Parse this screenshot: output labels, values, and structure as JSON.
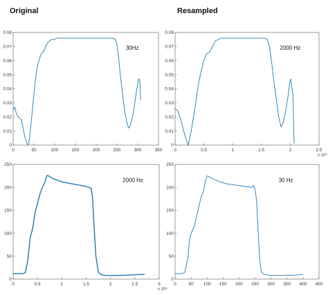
{
  "headings": {
    "left": "Original",
    "right": "Resampled"
  },
  "style": {
    "line_color": "#1f77b4",
    "axis_color": "#555555"
  },
  "chart_data": [
    {
      "type": "line",
      "id": "top-left",
      "annotation": "30Hz",
      "xlim": [
        0,
        350
      ],
      "ylim": [
        0,
        0.08
      ],
      "xticks": [
        "0",
        "50",
        "100",
        "150",
        "200",
        "250",
        "300",
        "350"
      ],
      "xtick_values": [
        0,
        50,
        100,
        150,
        200,
        250,
        300,
        350
      ],
      "yticks": [
        "0",
        "0.01",
        "0.02",
        "0.03",
        "0.04",
        "0.05",
        "0.06",
        "0.07",
        "0.08"
      ],
      "ytick_values": [
        0,
        0.01,
        0.02,
        0.03,
        0.04,
        0.05,
        0.06,
        0.07,
        0.08
      ],
      "x_exponent": "",
      "x": [
        0,
        4,
        8,
        12,
        16,
        20,
        24,
        28,
        32,
        36,
        38,
        40,
        44,
        48,
        52,
        56,
        60,
        64,
        68,
        72,
        76,
        80,
        84,
        88,
        92,
        96,
        100,
        104,
        110,
        120,
        140,
        160,
        180,
        200,
        220,
        230,
        240,
        246,
        250,
        254,
        258,
        262,
        266,
        270,
        274,
        278,
        282,
        286,
        290,
        294,
        298,
        302,
        305,
        307
      ],
      "y": [
        0.025,
        0.027,
        0.022,
        0.02,
        0.019,
        0.018,
        0.012,
        0.006,
        0.002,
        0.0,
        0.002,
        0.006,
        0.018,
        0.03,
        0.042,
        0.052,
        0.058,
        0.062,
        0.065,
        0.066,
        0.068,
        0.071,
        0.073,
        0.074,
        0.075,
        0.075,
        0.075,
        0.076,
        0.076,
        0.076,
        0.076,
        0.076,
        0.076,
        0.076,
        0.076,
        0.076,
        0.076,
        0.075,
        0.072,
        0.062,
        0.05,
        0.04,
        0.03,
        0.022,
        0.016,
        0.012,
        0.014,
        0.018,
        0.024,
        0.032,
        0.04,
        0.047,
        0.046,
        0.032
      ]
    },
    {
      "type": "line",
      "id": "top-right",
      "annotation": "2000 Hz",
      "xlim": [
        0,
        2.5
      ],
      "ylim": [
        0,
        0.08
      ],
      "xticks": [
        "0",
        "0.5",
        "1",
        "1.5",
        "2",
        "2.5"
      ],
      "xtick_values": [
        0,
        0.5,
        1,
        1.5,
        2,
        2.5
      ],
      "yticks": [
        "0",
        "0.01",
        "0.02",
        "0.03",
        "0.04",
        "0.05",
        "0.06",
        "0.07",
        "0.08"
      ],
      "ytick_values": [
        0,
        0.01,
        0.02,
        0.03,
        0.04,
        0.05,
        0.06,
        0.07,
        0.08
      ],
      "x_exponent": "x 10⁴",
      "x": [
        0,
        0.05,
        0.1,
        0.15,
        0.2,
        0.23,
        0.25,
        0.28,
        0.32,
        0.36,
        0.4,
        0.45,
        0.5,
        0.55,
        0.6,
        0.65,
        0.7,
        0.8,
        1.0,
        1.2,
        1.4,
        1.5,
        1.55,
        1.6,
        1.64,
        1.68,
        1.72,
        1.76,
        1.8,
        1.84,
        1.88,
        1.92,
        1.96,
        1.99,
        2.01,
        2.03,
        2.05,
        2.06,
        2.07
      ],
      "y": [
        0.026,
        0.024,
        0.018,
        0.01,
        0.003,
        0.0,
        0.004,
        0.01,
        0.02,
        0.03,
        0.042,
        0.052,
        0.06,
        0.065,
        0.066,
        0.07,
        0.074,
        0.076,
        0.076,
        0.076,
        0.076,
        0.076,
        0.076,
        0.075,
        0.07,
        0.058,
        0.044,
        0.032,
        0.02,
        0.013,
        0.016,
        0.024,
        0.034,
        0.044,
        0.047,
        0.04,
        0.035,
        0.01,
        0.001
      ]
    },
    {
      "type": "line",
      "id": "bottom-left",
      "annotation": "2000 Hz",
      "xlim": [
        0,
        3
      ],
      "ylim": [
        0,
        250
      ],
      "xticks": [
        "0",
        "0.5",
        "1",
        "1.5",
        "2",
        "2.5",
        "3"
      ],
      "xtick_values": [
        0,
        0.5,
        1,
        1.5,
        2,
        2.5,
        3
      ],
      "yticks": [
        "0",
        "50",
        "100",
        "150",
        "200",
        "250"
      ],
      "ytick_values": [
        0,
        50,
        100,
        150,
        200,
        250
      ],
      "x_exponent": "x 10⁴",
      "x": [
        0,
        0.1,
        0.2,
        0.25,
        0.3,
        0.35,
        0.4,
        0.45,
        0.5,
        0.55,
        0.6,
        0.65,
        0.68,
        0.7,
        0.75,
        0.8,
        0.9,
        1.0,
        1.1,
        1.2,
        1.3,
        1.4,
        1.5,
        1.55,
        1.6,
        1.63,
        1.66,
        1.7,
        1.75,
        1.8,
        1.9,
        2.0,
        2.2,
        2.4,
        2.6,
        2.7
      ],
      "y": [
        12,
        12,
        12,
        14,
        40,
        90,
        110,
        145,
        165,
        185,
        200,
        210,
        222,
        226,
        224,
        220,
        216,
        212,
        210,
        208,
        206,
        204,
        202,
        200,
        198,
        180,
        120,
        50,
        15,
        10,
        8,
        8,
        8,
        9,
        10,
        10
      ]
    },
    {
      "type": "line",
      "id": "bottom-right",
      "annotation": "30 Hz",
      "xlim": [
        0,
        450
      ],
      "ylim": [
        0,
        250
      ],
      "xticks": [
        "0",
        "50",
        "100",
        "150",
        "200",
        "250",
        "300",
        "350",
        "400",
        "450"
      ],
      "xtick_values": [
        0,
        50,
        100,
        150,
        200,
        250,
        300,
        350,
        400,
        450
      ],
      "yticks": [
        "0",
        "50",
        "100",
        "150",
        "200",
        "250"
      ],
      "ytick_values": [
        0,
        50,
        100,
        150,
        200,
        250
      ],
      "x_exponent": "",
      "x": [
        0,
        20,
        30,
        40,
        45,
        50,
        60,
        70,
        80,
        90,
        95,
        100,
        110,
        120,
        140,
        160,
        180,
        200,
        220,
        240,
        245,
        250,
        255,
        260,
        265,
        270,
        280,
        300,
        340,
        380,
        400
      ],
      "y": [
        12,
        12,
        14,
        45,
        85,
        100,
        115,
        145,
        175,
        195,
        215,
        225,
        222,
        218,
        212,
        208,
        206,
        204,
        202,
        200,
        204,
        196,
        170,
        100,
        40,
        15,
        10,
        8,
        8,
        9,
        10
      ]
    }
  ]
}
